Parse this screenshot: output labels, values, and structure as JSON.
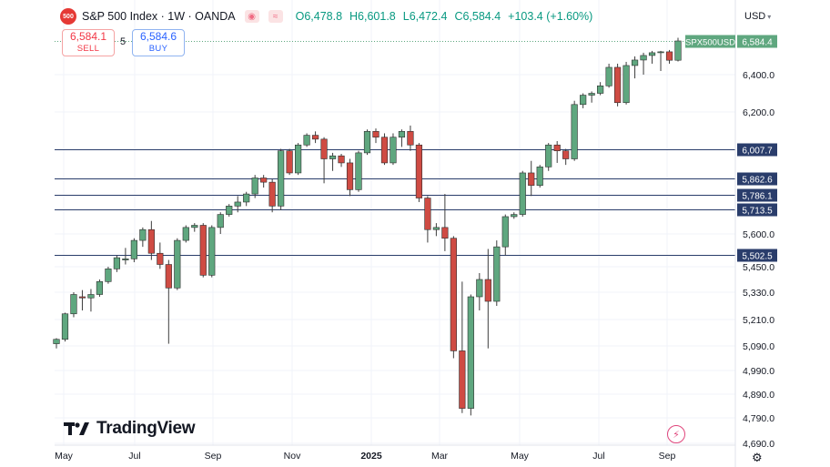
{
  "header": {
    "symbol_badge": "500",
    "title": "S&P 500 Index · 1W · OANDA",
    "ohlc": {
      "open": "O6,478.8",
      "high": "H6,601.8",
      "low": "L6,472.4",
      "close": "C6,584.4",
      "change": "+103.4 (+1.60%)"
    },
    "sell": {
      "price": "6,584.1",
      "label": "SELL"
    },
    "spread": "5",
    "buy": {
      "price": "6,584.6",
      "label": "BUY"
    },
    "currency": "USD"
  },
  "colors": {
    "up": "#5fa77f",
    "down": "#cf4b43",
    "level_line": "#2a3d6b",
    "label_bg": "#2a3d6b",
    "last_bg": "#5fa77f"
  },
  "logo_text": "TradingView",
  "chart_data": {
    "type": "candlestick",
    "instrument": "SPX500USD",
    "interval": "1W",
    "y_axis_ticks": [
      "4,690.0",
      "4,790.0",
      "4,890.0",
      "4,990.0",
      "5,090.0",
      "5,210.0",
      "5,330.0",
      "5,450.0",
      "5,600.0",
      "6,200.0",
      "6,400.0"
    ],
    "x_axis_labels": [
      "May",
      "Jul",
      "Sep",
      "Nov",
      "2025",
      "Mar",
      "May",
      "Jul",
      "Sep"
    ],
    "horizontal_levels": [
      "6,007.7",
      "5,862.6",
      "5,786.1",
      "5,713.5",
      "5,502.5"
    ],
    "last_price": "6,584.4",
    "last_label": "SPX500USD",
    "grid": true,
    "candles": [
      {
        "o": 5100,
        "h": 5125,
        "l": 5080,
        "c": 5120
      },
      {
        "o": 5120,
        "h": 5240,
        "l": 5110,
        "c": 5235
      },
      {
        "o": 5235,
        "h": 5330,
        "l": 5220,
        "c": 5320
      },
      {
        "o": 5310,
        "h": 5340,
        "l": 5250,
        "c": 5305
      },
      {
        "o": 5305,
        "h": 5345,
        "l": 5245,
        "c": 5320
      },
      {
        "o": 5320,
        "h": 5390,
        "l": 5310,
        "c": 5380
      },
      {
        "o": 5380,
        "h": 5450,
        "l": 5370,
        "c": 5440
      },
      {
        "o": 5440,
        "h": 5500,
        "l": 5425,
        "c": 5490
      },
      {
        "o": 5480,
        "h": 5535,
        "l": 5460,
        "c": 5485
      },
      {
        "o": 5485,
        "h": 5580,
        "l": 5470,
        "c": 5570
      },
      {
        "o": 5570,
        "h": 5630,
        "l": 5540,
        "c": 5620
      },
      {
        "o": 5620,
        "h": 5660,
        "l": 5480,
        "c": 5510
      },
      {
        "o": 5510,
        "h": 5560,
        "l": 5440,
        "c": 5460
      },
      {
        "o": 5460,
        "h": 5480,
        "l": 5100,
        "c": 5350
      },
      {
        "o": 5350,
        "h": 5580,
        "l": 5340,
        "c": 5570
      },
      {
        "o": 5570,
        "h": 5640,
        "l": 5560,
        "c": 5630
      },
      {
        "o": 5630,
        "h": 5650,
        "l": 5610,
        "c": 5640
      },
      {
        "o": 5640,
        "h": 5650,
        "l": 5400,
        "c": 5410
      },
      {
        "o": 5410,
        "h": 5640,
        "l": 5400,
        "c": 5630
      },
      {
        "o": 5630,
        "h": 5700,
        "l": 5600,
        "c": 5690
      },
      {
        "o": 5690,
        "h": 5740,
        "l": 5680,
        "c": 5730
      },
      {
        "o": 5730,
        "h": 5780,
        "l": 5700,
        "c": 5750
      },
      {
        "o": 5750,
        "h": 5800,
        "l": 5730,
        "c": 5790
      },
      {
        "o": 5790,
        "h": 5880,
        "l": 5770,
        "c": 5865
      },
      {
        "o": 5865,
        "h": 5880,
        "l": 5820,
        "c": 5845
      },
      {
        "o": 5845,
        "h": 5860,
        "l": 5700,
        "c": 5730
      },
      {
        "o": 5730,
        "h": 6010,
        "l": 5710,
        "c": 6000
      },
      {
        "o": 6000,
        "h": 6010,
        "l": 5880,
        "c": 5890
      },
      {
        "o": 5890,
        "h": 6040,
        "l": 5880,
        "c": 6030
      },
      {
        "o": 6030,
        "h": 6090,
        "l": 6020,
        "c": 6080
      },
      {
        "o": 6080,
        "h": 6100,
        "l": 6040,
        "c": 6060
      },
      {
        "o": 6060,
        "h": 6070,
        "l": 5840,
        "c": 5960
      },
      {
        "o": 5960,
        "h": 5990,
        "l": 5900,
        "c": 5975
      },
      {
        "o": 5975,
        "h": 5985,
        "l": 5920,
        "c": 5940
      },
      {
        "o": 5940,
        "h": 5960,
        "l": 5780,
        "c": 5810
      },
      {
        "o": 5810,
        "h": 6000,
        "l": 5800,
        "c": 5990
      },
      {
        "o": 5990,
        "h": 6110,
        "l": 5980,
        "c": 6100
      },
      {
        "o": 6100,
        "h": 6115,
        "l": 6040,
        "c": 6070
      },
      {
        "o": 6070,
        "h": 6090,
        "l": 5930,
        "c": 5940
      },
      {
        "o": 5940,
        "h": 6090,
        "l": 5930,
        "c": 6070
      },
      {
        "o": 6070,
        "h": 6110,
        "l": 6020,
        "c": 6100
      },
      {
        "o": 6100,
        "h": 6130,
        "l": 6000,
        "c": 6030
      },
      {
        "o": 6030,
        "h": 6040,
        "l": 5750,
        "c": 5770
      },
      {
        "o": 5770,
        "h": 5780,
        "l": 5560,
        "c": 5620
      },
      {
        "o": 5620,
        "h": 5650,
        "l": 5590,
        "c": 5630
      },
      {
        "o": 5630,
        "h": 5790,
        "l": 5520,
        "c": 5580
      },
      {
        "o": 5580,
        "h": 5590,
        "l": 5040,
        "c": 5070
      },
      {
        "o": 5070,
        "h": 5380,
        "l": 4810,
        "c": 4830
      },
      {
        "o": 4830,
        "h": 5320,
        "l": 4800,
        "c": 5310
      },
      {
        "o": 5310,
        "h": 5420,
        "l": 5250,
        "c": 5390
      },
      {
        "o": 5390,
        "h": 5530,
        "l": 5080,
        "c": 5290
      },
      {
        "o": 5290,
        "h": 5570,
        "l": 5270,
        "c": 5540
      },
      {
        "o": 5540,
        "h": 5690,
        "l": 5500,
        "c": 5680
      },
      {
        "o": 5680,
        "h": 5700,
        "l": 5670,
        "c": 5690
      },
      {
        "o": 5690,
        "h": 5900,
        "l": 5680,
        "c": 5890
      },
      {
        "o": 5890,
        "h": 5950,
        "l": 5780,
        "c": 5830
      },
      {
        "o": 5830,
        "h": 5930,
        "l": 5820,
        "c": 5920
      },
      {
        "o": 5920,
        "h": 6040,
        "l": 5900,
        "c": 6030
      },
      {
        "o": 6030,
        "h": 6050,
        "l": 5940,
        "c": 6000
      },
      {
        "o": 6000,
        "h": 6010,
        "l": 5930,
        "c": 5960
      },
      {
        "o": 5960,
        "h": 6260,
        "l": 5950,
        "c": 6240
      },
      {
        "o": 6240,
        "h": 6300,
        "l": 6220,
        "c": 6290
      },
      {
        "o": 6290,
        "h": 6310,
        "l": 6250,
        "c": 6300
      },
      {
        "o": 6300,
        "h": 6360,
        "l": 6290,
        "c": 6340
      },
      {
        "o": 6340,
        "h": 6460,
        "l": 6330,
        "c": 6440
      },
      {
        "o": 6440,
        "h": 6460,
        "l": 6230,
        "c": 6250
      },
      {
        "o": 6250,
        "h": 6470,
        "l": 6240,
        "c": 6450
      },
      {
        "o": 6450,
        "h": 6500,
        "l": 6380,
        "c": 6480
      },
      {
        "o": 6480,
        "h": 6520,
        "l": 6400,
        "c": 6505
      },
      {
        "o": 6505,
        "h": 6530,
        "l": 6460,
        "c": 6520
      },
      {
        "o": 6520,
        "h": 6530,
        "l": 6420,
        "c": 6525
      },
      {
        "o": 6525,
        "h": 6535,
        "l": 6460,
        "c": 6478.8
      },
      {
        "o": 6478.8,
        "h": 6601.8,
        "l": 6472.4,
        "c": 6584.4
      }
    ]
  }
}
